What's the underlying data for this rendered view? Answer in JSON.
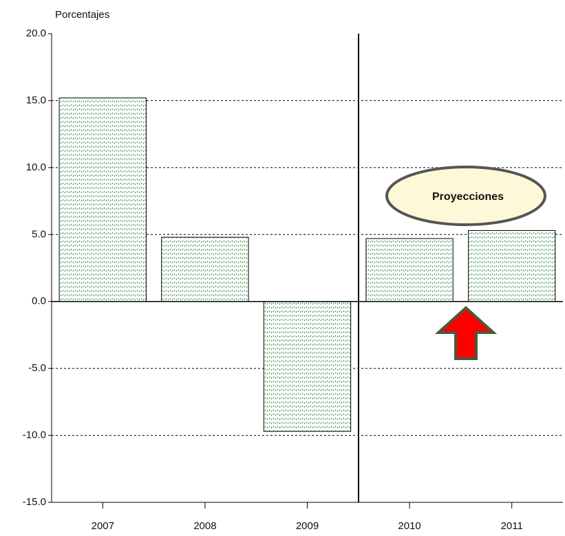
{
  "chart_data": {
    "type": "bar",
    "ylabel": "Porcentajes",
    "categories": [
      "2007",
      "2008",
      "2009",
      "2010",
      "2011"
    ],
    "values": [
      15.2,
      4.8,
      -9.7,
      4.7,
      5.3
    ],
    "color": "#2e8b3e",
    "ylim": [
      -15,
      20
    ],
    "yticks": [
      {
        "value": -15,
        "label": "-15.0"
      },
      {
        "value": -10,
        "label": "-10.0"
      },
      {
        "value": -5,
        "label": "-5.0"
      },
      {
        "value": 0,
        "label": "0.0"
      },
      {
        "value": 5,
        "label": "5.0"
      },
      {
        "value": 10,
        "label": "10.0"
      },
      {
        "value": 15,
        "label": "15.0"
      },
      {
        "value": 20,
        "label": "20.0"
      }
    ],
    "grid": true,
    "annotation": "Proyecciones"
  }
}
